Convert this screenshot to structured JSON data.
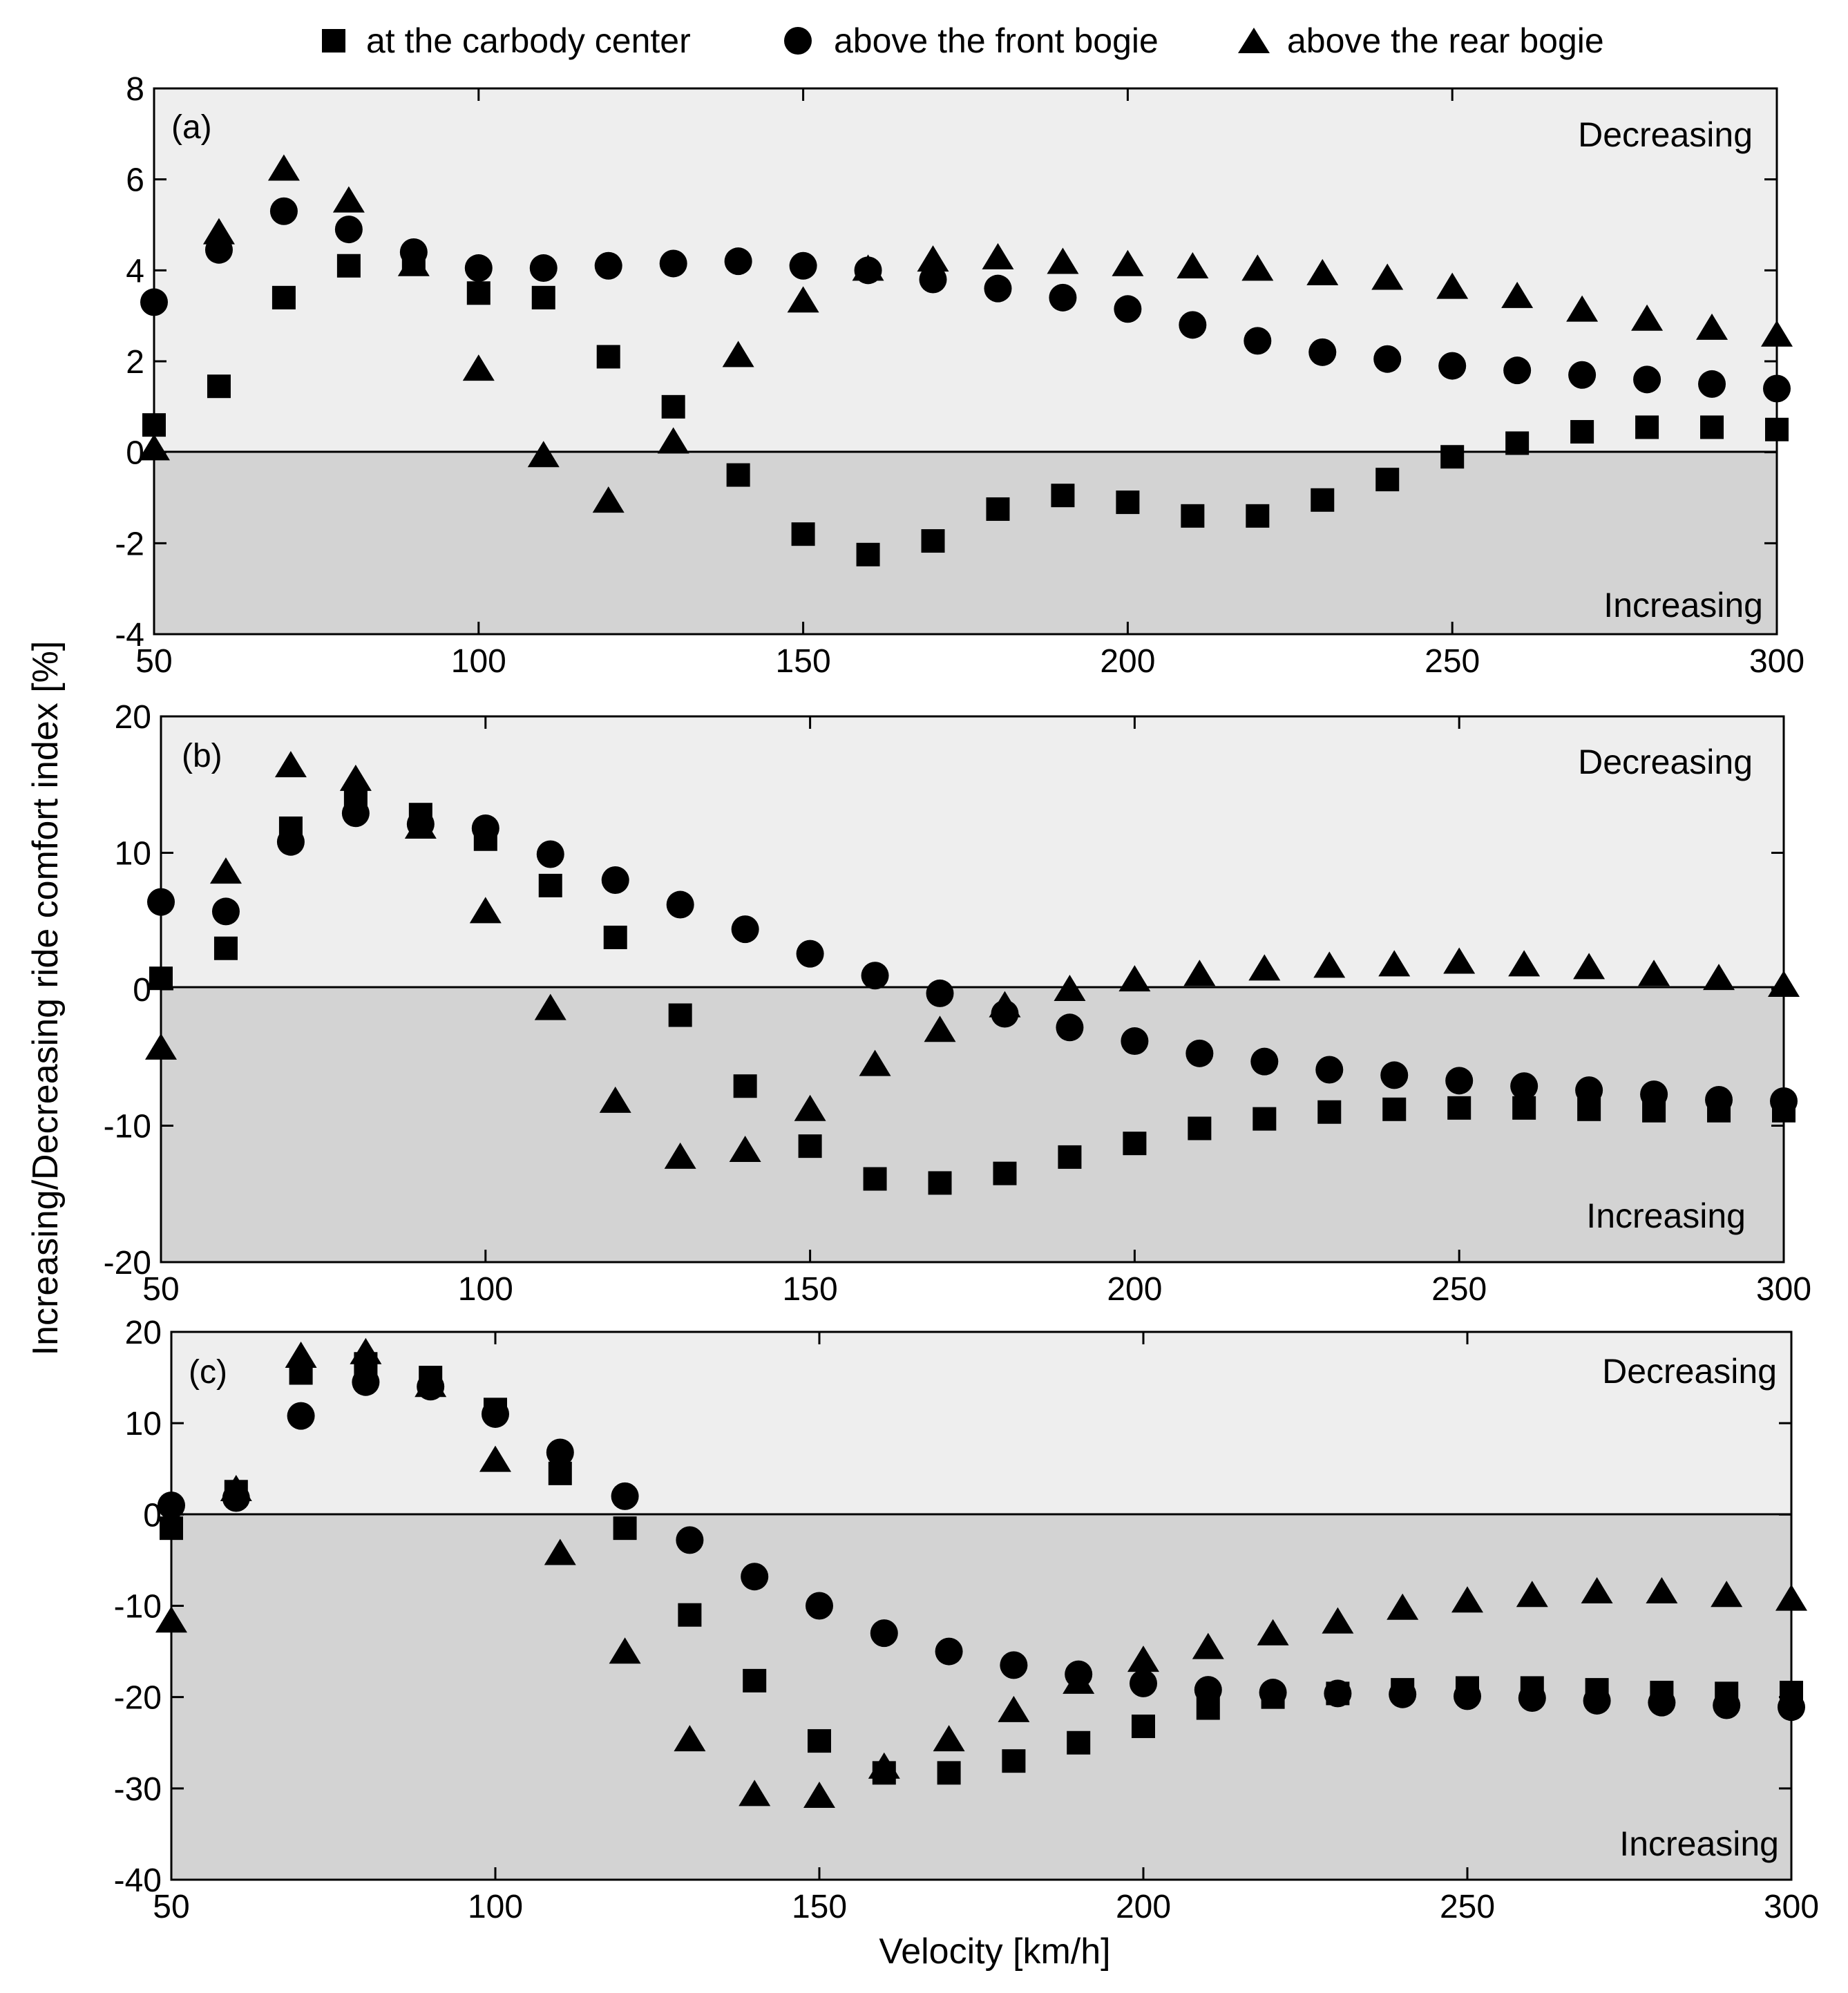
{
  "legend": {
    "series": [
      {
        "name": "at the carbody center",
        "marker": "square"
      },
      {
        "name": "above the front bogie",
        "marker": "circle"
      },
      {
        "name": "above the rear bogie",
        "marker": "triangle"
      }
    ]
  },
  "axis_titles": {
    "x": "Velocity [km/h]",
    "y": "Increasing/Decreasing ride comfort index [%]"
  },
  "region_labels": {
    "above": "Decreasing",
    "below": "Increasing"
  },
  "colors": {
    "upper_region": "#eeeeee",
    "lower_region": "#d3d3d3",
    "marker": "#000000"
  },
  "chart_data": [
    {
      "type": "scatter",
      "panel_label": "(a)",
      "x": [
        50,
        60,
        70,
        80,
        90,
        100,
        110,
        120,
        130,
        140,
        150,
        160,
        170,
        180,
        190,
        200,
        210,
        220,
        230,
        240,
        250,
        260,
        270,
        280,
        290,
        300
      ],
      "xlim": [
        50,
        300
      ],
      "ylim": [
        -4,
        8
      ],
      "xticks": [
        50,
        100,
        150,
        200,
        250,
        300
      ],
      "yticks": [
        -4,
        -2,
        0,
        2,
        4,
        6,
        8
      ],
      "xlabel": "",
      "ylabel": "",
      "series": [
        {
          "name": "at the carbody center",
          "marker": "square",
          "values": [
            0.6,
            1.45,
            3.4,
            4.1,
            4.2,
            3.5,
            3.4,
            2.1,
            1.0,
            -0.5,
            -1.8,
            -2.25,
            -1.95,
            -1.25,
            -0.95,
            -1.1,
            -1.4,
            -1.4,
            -1.05,
            -0.6,
            -0.1,
            0.2,
            0.45,
            0.55,
            0.55,
            0.5
          ]
        },
        {
          "name": "above the front bogie",
          "marker": "circle",
          "values": [
            3.3,
            4.45,
            5.3,
            4.9,
            4.4,
            4.05,
            4.05,
            4.1,
            4.15,
            4.2,
            4.1,
            4.0,
            3.8,
            3.6,
            3.4,
            3.15,
            2.8,
            2.45,
            2.2,
            2.05,
            1.9,
            1.8,
            1.7,
            1.6,
            1.5,
            1.4
          ]
        },
        {
          "name": "above the rear bogie",
          "marker": "triangle",
          "values": [
            0.05,
            4.8,
            6.2,
            5.5,
            4.1,
            1.8,
            -0.1,
            -1.1,
            0.2,
            2.1,
            3.3,
            4.0,
            4.2,
            4.25,
            4.15,
            4.1,
            4.05,
            4.0,
            3.9,
            3.8,
            3.6,
            3.4,
            3.1,
            2.9,
            2.7,
            2.55
          ]
        }
      ]
    },
    {
      "type": "scatter",
      "panel_label": "(b)",
      "x": [
        50,
        60,
        70,
        80,
        90,
        100,
        110,
        120,
        130,
        140,
        150,
        160,
        170,
        180,
        190,
        200,
        210,
        220,
        230,
        240,
        250,
        260,
        270,
        280,
        290,
        300
      ],
      "xlim": [
        50,
        300
      ],
      "ylim": [
        -20,
        20
      ],
      "xticks": [
        50,
        100,
        150,
        200,
        250,
        300
      ],
      "yticks": [
        -20,
        -10,
        0,
        10,
        20
      ],
      "xlabel": "",
      "ylabel": "",
      "series": [
        {
          "name": "at the carbody center",
          "marker": "square",
          "values": [
            0.8,
            3.0,
            11.8,
            14.0,
            12.8,
            11.0,
            7.6,
            3.8,
            -1.9,
            -7.1,
            -11.5,
            -13.9,
            -14.2,
            -13.5,
            -12.3,
            -11.3,
            -10.2,
            -9.5,
            -9.0,
            -8.8,
            -8.7,
            -8.7,
            -8.8,
            -8.9,
            -8.9,
            -8.9
          ]
        },
        {
          "name": "above the front bogie",
          "marker": "circle",
          "values": [
            6.4,
            5.7,
            10.8,
            12.9,
            12.1,
            11.8,
            9.9,
            8.0,
            6.2,
            4.4,
            2.6,
            1.0,
            -0.3,
            -1.8,
            -2.8,
            -3.8,
            -4.7,
            -5.3,
            -5.9,
            -6.3,
            -6.7,
            -7.1,
            -7.4,
            -7.7,
            -8.1,
            -8.2
          ]
        },
        {
          "name": "above the rear bogie",
          "marker": "triangle",
          "values": [
            -4.4,
            8.5,
            16.3,
            15.3,
            11.8,
            5.6,
            -1.5,
            -8.3,
            -12.4,
            -11.9,
            -8.9,
            -5.6,
            -3.1,
            -1.3,
            -0.1,
            0.6,
            1.0,
            1.4,
            1.6,
            1.7,
            1.9,
            1.7,
            1.5,
            1.0,
            0.7,
            0.2
          ]
        }
      ]
    },
    {
      "type": "scatter",
      "panel_label": "(c)",
      "x": [
        50,
        60,
        70,
        80,
        90,
        100,
        110,
        120,
        130,
        140,
        150,
        160,
        170,
        180,
        190,
        200,
        210,
        220,
        230,
        240,
        250,
        260,
        270,
        280,
        290,
        300
      ],
      "xlim": [
        50,
        300
      ],
      "ylim": [
        -40,
        20
      ],
      "xticks": [
        50,
        100,
        150,
        200,
        250,
        300
      ],
      "yticks": [
        -40,
        -30,
        -20,
        -10,
        0,
        10,
        20
      ],
      "xlabel": "",
      "ylabel": "",
      "series": [
        {
          "name": "at the carbody center",
          "marker": "square",
          "values": [
            -1.5,
            2.5,
            15.5,
            16.5,
            15.0,
            11.5,
            4.5,
            -1.5,
            -11.0,
            -18.2,
            -24.8,
            -28.3,
            -28.3,
            -27.0,
            -25.0,
            -23.2,
            -21.2,
            -20.0,
            -19.6,
            -19.2,
            -19.0,
            -19.0,
            -19.2,
            -19.5,
            -19.6,
            -19.5
          ]
        },
        {
          "name": "above the front bogie",
          "marker": "circle",
          "values": [
            1.0,
            1.8,
            10.8,
            14.5,
            14.0,
            11.0,
            6.8,
            2.0,
            -2.8,
            -6.8,
            -10.0,
            -13.0,
            -15.0,
            -16.5,
            -17.5,
            -18.5,
            -19.2,
            -19.5,
            -19.6,
            -19.7,
            -19.9,
            -20.1,
            -20.4,
            -20.6,
            -20.9,
            -21.1
          ]
        },
        {
          "name": "above the rear bogie",
          "marker": "triangle",
          "values": [
            -11.8,
            2.6,
            17.2,
            17.6,
            14.0,
            5.8,
            -4.4,
            -15.2,
            -24.8,
            -30.8,
            -31.0,
            -27.8,
            -24.8,
            -21.6,
            -18.5,
            -16.1,
            -14.7,
            -13.2,
            -11.9,
            -10.4,
            -9.6,
            -9.0,
            -8.6,
            -8.6,
            -9.0,
            -9.4
          ]
        }
      ]
    }
  ]
}
